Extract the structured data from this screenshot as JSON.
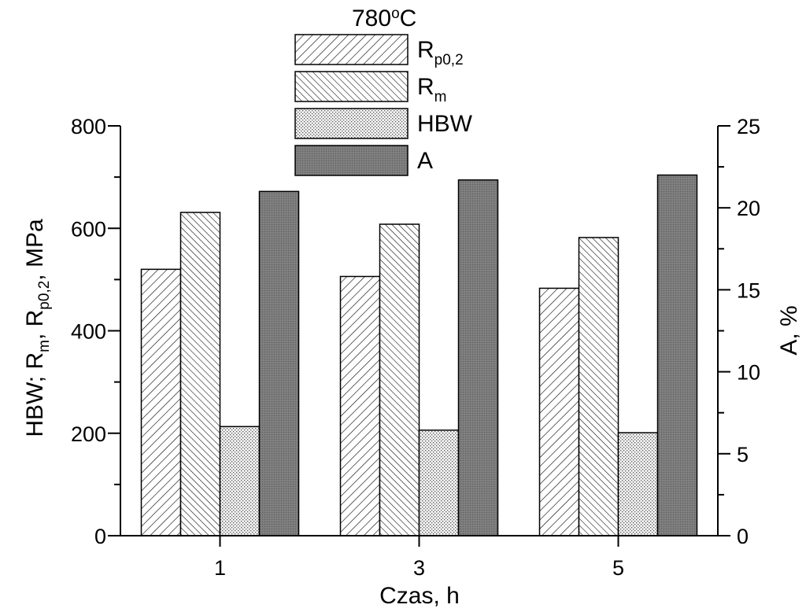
{
  "chart_data": {
    "type": "bar",
    "title": "780",
    "title_unit_sup": "o",
    "title_unit": "C",
    "xlabel": "Czas, h",
    "ylabel_left": {
      "parts": [
        {
          "t": "HBW; R",
          "sub": false
        },
        {
          "t": "m",
          "sub": true
        },
        {
          "t": ", R",
          "sub": false
        },
        {
          "t": "p0,2",
          "sub": true
        },
        {
          "t": ", MPa",
          "sub": false
        }
      ]
    },
    "ylabel_right": "A, %",
    "categories": [
      "1",
      "3",
      "5"
    ],
    "ylim_left": [
      0,
      800
    ],
    "ylim_right": [
      0,
      25
    ],
    "yticks_left": [
      0,
      200,
      400,
      600,
      800
    ],
    "yticks_right": [
      0,
      5,
      10,
      15,
      20,
      25
    ],
    "series": [
      {
        "name_main": "R",
        "name_sub": "p0,2",
        "axis": "left",
        "pattern": "hatch-fwd",
        "values": [
          520,
          506,
          483
        ]
      },
      {
        "name_main": "R",
        "name_sub": "m",
        "axis": "left",
        "pattern": "hatch-back",
        "values": [
          631,
          608,
          582
        ]
      },
      {
        "name_main": "HBW",
        "name_sub": "",
        "axis": "left",
        "pattern": "dots",
        "values": [
          213,
          206,
          201
        ]
      },
      {
        "name_main": "A",
        "name_sub": "",
        "axis": "right",
        "pattern": "dark",
        "values": [
          21.0,
          21.7,
          22.0
        ]
      }
    ],
    "legend_position": "top-center",
    "grid": false
  }
}
